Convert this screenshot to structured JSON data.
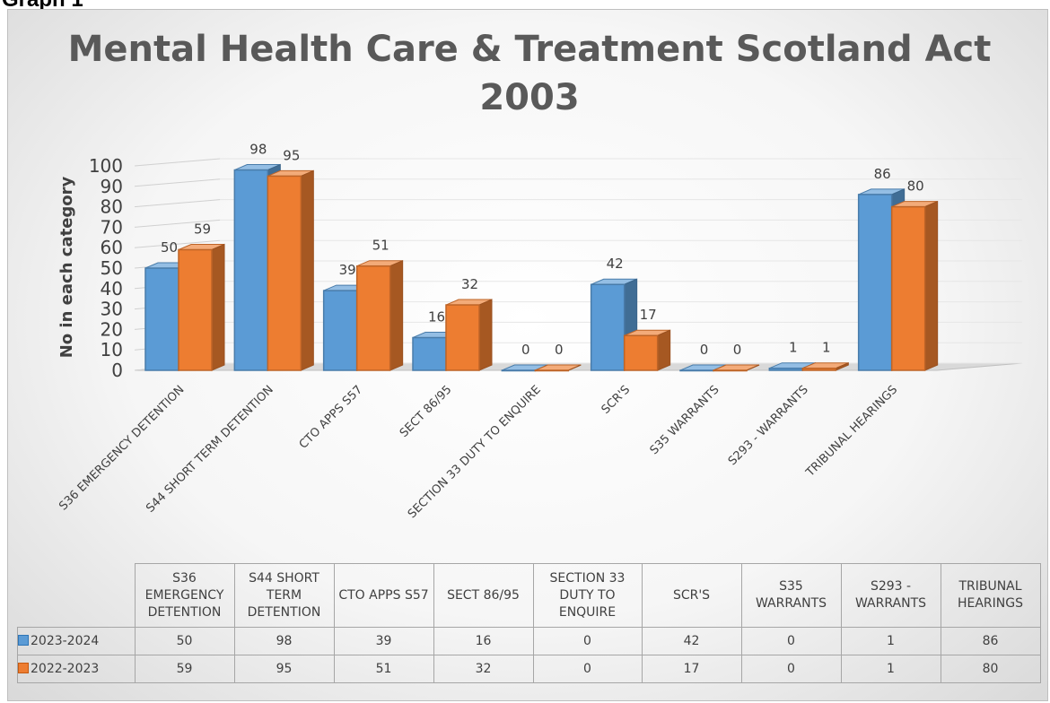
{
  "page_heading": "Graph 1",
  "chart_data": {
    "type": "bar",
    "title_lines": [
      "Mental Health Care & Treatment Scotland Act",
      "2003"
    ],
    "ylabel": "No in each category",
    "xlabel": "",
    "ylim": [
      0,
      100
    ],
    "yticks": [
      0,
      10,
      20,
      30,
      40,
      50,
      60,
      70,
      80,
      90,
      100
    ],
    "grid": true,
    "legend": "data-table",
    "categories": [
      "S36 EMERGENCY DETENTION",
      "S44 SHORT TERM DETENTION",
      "CTO APPS S57",
      "SECT 86/95",
      "SECTION 33 DUTY TO ENQUIRE",
      "SCR'S",
      "S35 WARRANTS",
      "S293 - WARRANTS",
      "TRIBUNAL HEARINGS"
    ],
    "series": [
      {
        "name": "2023-2024",
        "color": "#5b9bd5",
        "values": [
          50,
          98,
          39,
          16,
          0,
          42,
          0,
          1,
          86
        ]
      },
      {
        "name": "2022-2023",
        "color": "#ed7d31",
        "values": [
          59,
          95,
          51,
          32,
          0,
          17,
          0,
          1,
          80
        ]
      }
    ]
  },
  "table": {
    "headers": [
      [
        "S36",
        "EMERGENCY",
        "DETENTION"
      ],
      [
        "S44 SHORT",
        "TERM",
        "DETENTION"
      ],
      [
        "CTO APPS S57"
      ],
      [
        "SECT 86/95"
      ],
      [
        "SECTION 33",
        "DUTY TO",
        "ENQUIRE"
      ],
      [
        "SCR'S"
      ],
      [
        "S35",
        "WARRANTS"
      ],
      [
        "S293 -",
        "WARRANTS"
      ],
      [
        "TRIBUNAL",
        "HEARINGS"
      ]
    ]
  }
}
